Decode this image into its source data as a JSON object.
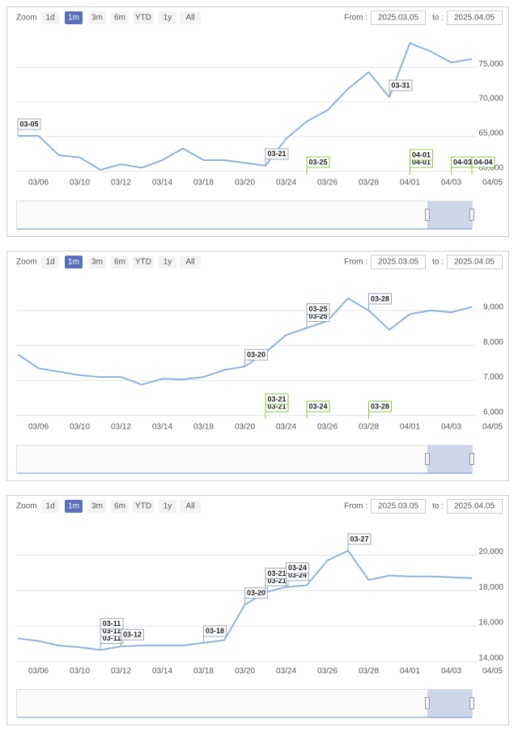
{
  "chart_data": [
    {
      "type": "line",
      "zoom_label": "Zoom",
      "zoom_buttons": [
        "1d",
        "1m",
        "3m",
        "6m",
        "YTD",
        "1y",
        "All"
      ],
      "zoom_selected": 1,
      "from_label": "From :",
      "from_value": "2025.03.05",
      "to_label": "to :",
      "to_value": "2025.04.05",
      "categories": [
        null,
        "03/06",
        null,
        "03/10",
        null,
        "03/12",
        null,
        "03/14",
        null,
        "03/18",
        null,
        "03/20",
        null,
        "03/24",
        null,
        "03/26",
        null,
        "03/28",
        null,
        "04/01",
        null,
        "04/03",
        null,
        "04/05"
      ],
      "values": [
        65100,
        65100,
        62300,
        62000,
        60200,
        61000,
        60500,
        61600,
        63300,
        61600,
        61600,
        61200,
        60800,
        64700,
        67200,
        68800,
        71900,
        74300,
        70700,
        78500,
        77300,
        75700,
        76200,
        null
      ],
      "color": "#8fb1de",
      "ylim": [
        59500,
        79700
      ],
      "yticks": [
        {
          "value": 60000,
          "label": "60,000"
        },
        {
          "value": 65000,
          "label": "65,000"
        },
        {
          "value": 70000,
          "label": "70,000"
        },
        {
          "value": 75000,
          "label": "75,000"
        }
      ],
      "grid": true,
      "flags": [
        {
          "label": "03-05",
          "index": 0,
          "on": "series"
        },
        {
          "label": "03-21",
          "index": 12,
          "on": "series"
        },
        {
          "label": "03-31",
          "index": 18,
          "on": "series"
        },
        {
          "label": "03-25",
          "index": 14,
          "on": "axis"
        },
        {
          "label": "04-01",
          "index": 19,
          "on": "axis"
        },
        {
          "label": "04-01",
          "index": 19,
          "on": "axis"
        },
        {
          "label": "04-03",
          "index": 21,
          "on": "axis"
        },
        {
          "label": "04-04",
          "index": 22,
          "on": "axis"
        }
      ]
    },
    {
      "type": "line",
      "zoom_label": "Zoom",
      "zoom_buttons": [
        "1d",
        "1m",
        "3m",
        "6m",
        "YTD",
        "1y",
        "All"
      ],
      "zoom_selected": 1,
      "from_label": "From :",
      "from_value": "2025.03.05",
      "to_label": "to :",
      "to_value": "2025.04.05",
      "categories": [
        null,
        "03/06",
        null,
        "03/10",
        null,
        "03/12",
        null,
        "03/14",
        null,
        "03/18",
        null,
        "03/20",
        null,
        "03/24",
        null,
        "03/26",
        null,
        "03/28",
        null,
        "04/01",
        null,
        "04/03",
        null,
        "04/05"
      ],
      "values": [
        7750,
        7350,
        7250,
        7150,
        7100,
        7100,
        6880,
        7050,
        7030,
        7100,
        7300,
        7400,
        7800,
        8300,
        8500,
        8700,
        9350,
        9000,
        8450,
        8900,
        9000,
        8950,
        9100,
        null
      ],
      "color": "#8fb1de",
      "ylim": [
        5900,
        9900
      ],
      "yticks": [
        {
          "value": 6000,
          "label": "6,000"
        },
        {
          "value": 7000,
          "label": "7,000"
        },
        {
          "value": 8000,
          "label": "8,000"
        },
        {
          "value": 9000,
          "label": "9,000"
        }
      ],
      "grid": true,
      "flags": [
        {
          "label": "03-20",
          "index": 11,
          "on": "series"
        },
        {
          "label": "03-25",
          "index": 14,
          "on": "series"
        },
        {
          "label": "03-25",
          "index": 14,
          "on": "series"
        },
        {
          "label": "03-28",
          "index": 17,
          "on": "series"
        },
        {
          "label": "03-21",
          "index": 12,
          "on": "axis"
        },
        {
          "label": "03-21",
          "index": 12,
          "on": "axis"
        },
        {
          "label": "03-24",
          "index": 14,
          "on": "axis"
        },
        {
          "label": "03-28",
          "index": 17,
          "on": "axis"
        }
      ]
    },
    {
      "type": "line",
      "zoom_label": "Zoom",
      "zoom_buttons": [
        "1d",
        "1m",
        "3m",
        "6m",
        "YTD",
        "1y",
        "All"
      ],
      "zoom_selected": 1,
      "from_label": "From :",
      "from_value": "2025.03.05",
      "to_label": "to :",
      "to_value": "2025.04.05",
      "categories": [
        null,
        "03/06",
        null,
        "03/10",
        null,
        "03/12",
        null,
        "03/14",
        null,
        "03/18",
        null,
        "03/20",
        null,
        "03/24",
        null,
        "03/26",
        null,
        "03/28",
        null,
        "04/01",
        null,
        "04/03",
        null,
        "04/05"
      ],
      "values": [
        15300,
        15150,
        14900,
        14800,
        14650,
        14850,
        14900,
        14900,
        14900,
        15050,
        15200,
        17200,
        17900,
        18200,
        18300,
        19700,
        20250,
        18600,
        18850,
        18800,
        18800,
        18750,
        18700,
        null
      ],
      "color": "#8fb1de",
      "ylim": [
        13900,
        21800
      ],
      "yticks": [
        {
          "value": 14000,
          "label": "14,000"
        },
        {
          "value": 16000,
          "label": "16,000"
        },
        {
          "value": 18000,
          "label": "18,000"
        },
        {
          "value": 20000,
          "label": "20,000"
        }
      ],
      "grid": true,
      "flags": [
        {
          "label": "03-11",
          "index": 4,
          "on": "series"
        },
        {
          "label": "03-11",
          "index": 4,
          "on": "series"
        },
        {
          "label": "03-11",
          "index": 4,
          "on": "series"
        },
        {
          "label": "03-12",
          "index": 5,
          "on": "series"
        },
        {
          "label": "03-18",
          "index": 9,
          "on": "series"
        },
        {
          "label": "03-20",
          "index": 11,
          "on": "series"
        },
        {
          "label": "03-21",
          "index": 12,
          "on": "series"
        },
        {
          "label": "03-21",
          "index": 12,
          "on": "series"
        },
        {
          "label": "03-24",
          "index": 13,
          "on": "series"
        },
        {
          "label": "03-24",
          "index": 13,
          "on": "series"
        },
        {
          "label": "03-27",
          "index": 16,
          "on": "series"
        }
      ]
    }
  ]
}
